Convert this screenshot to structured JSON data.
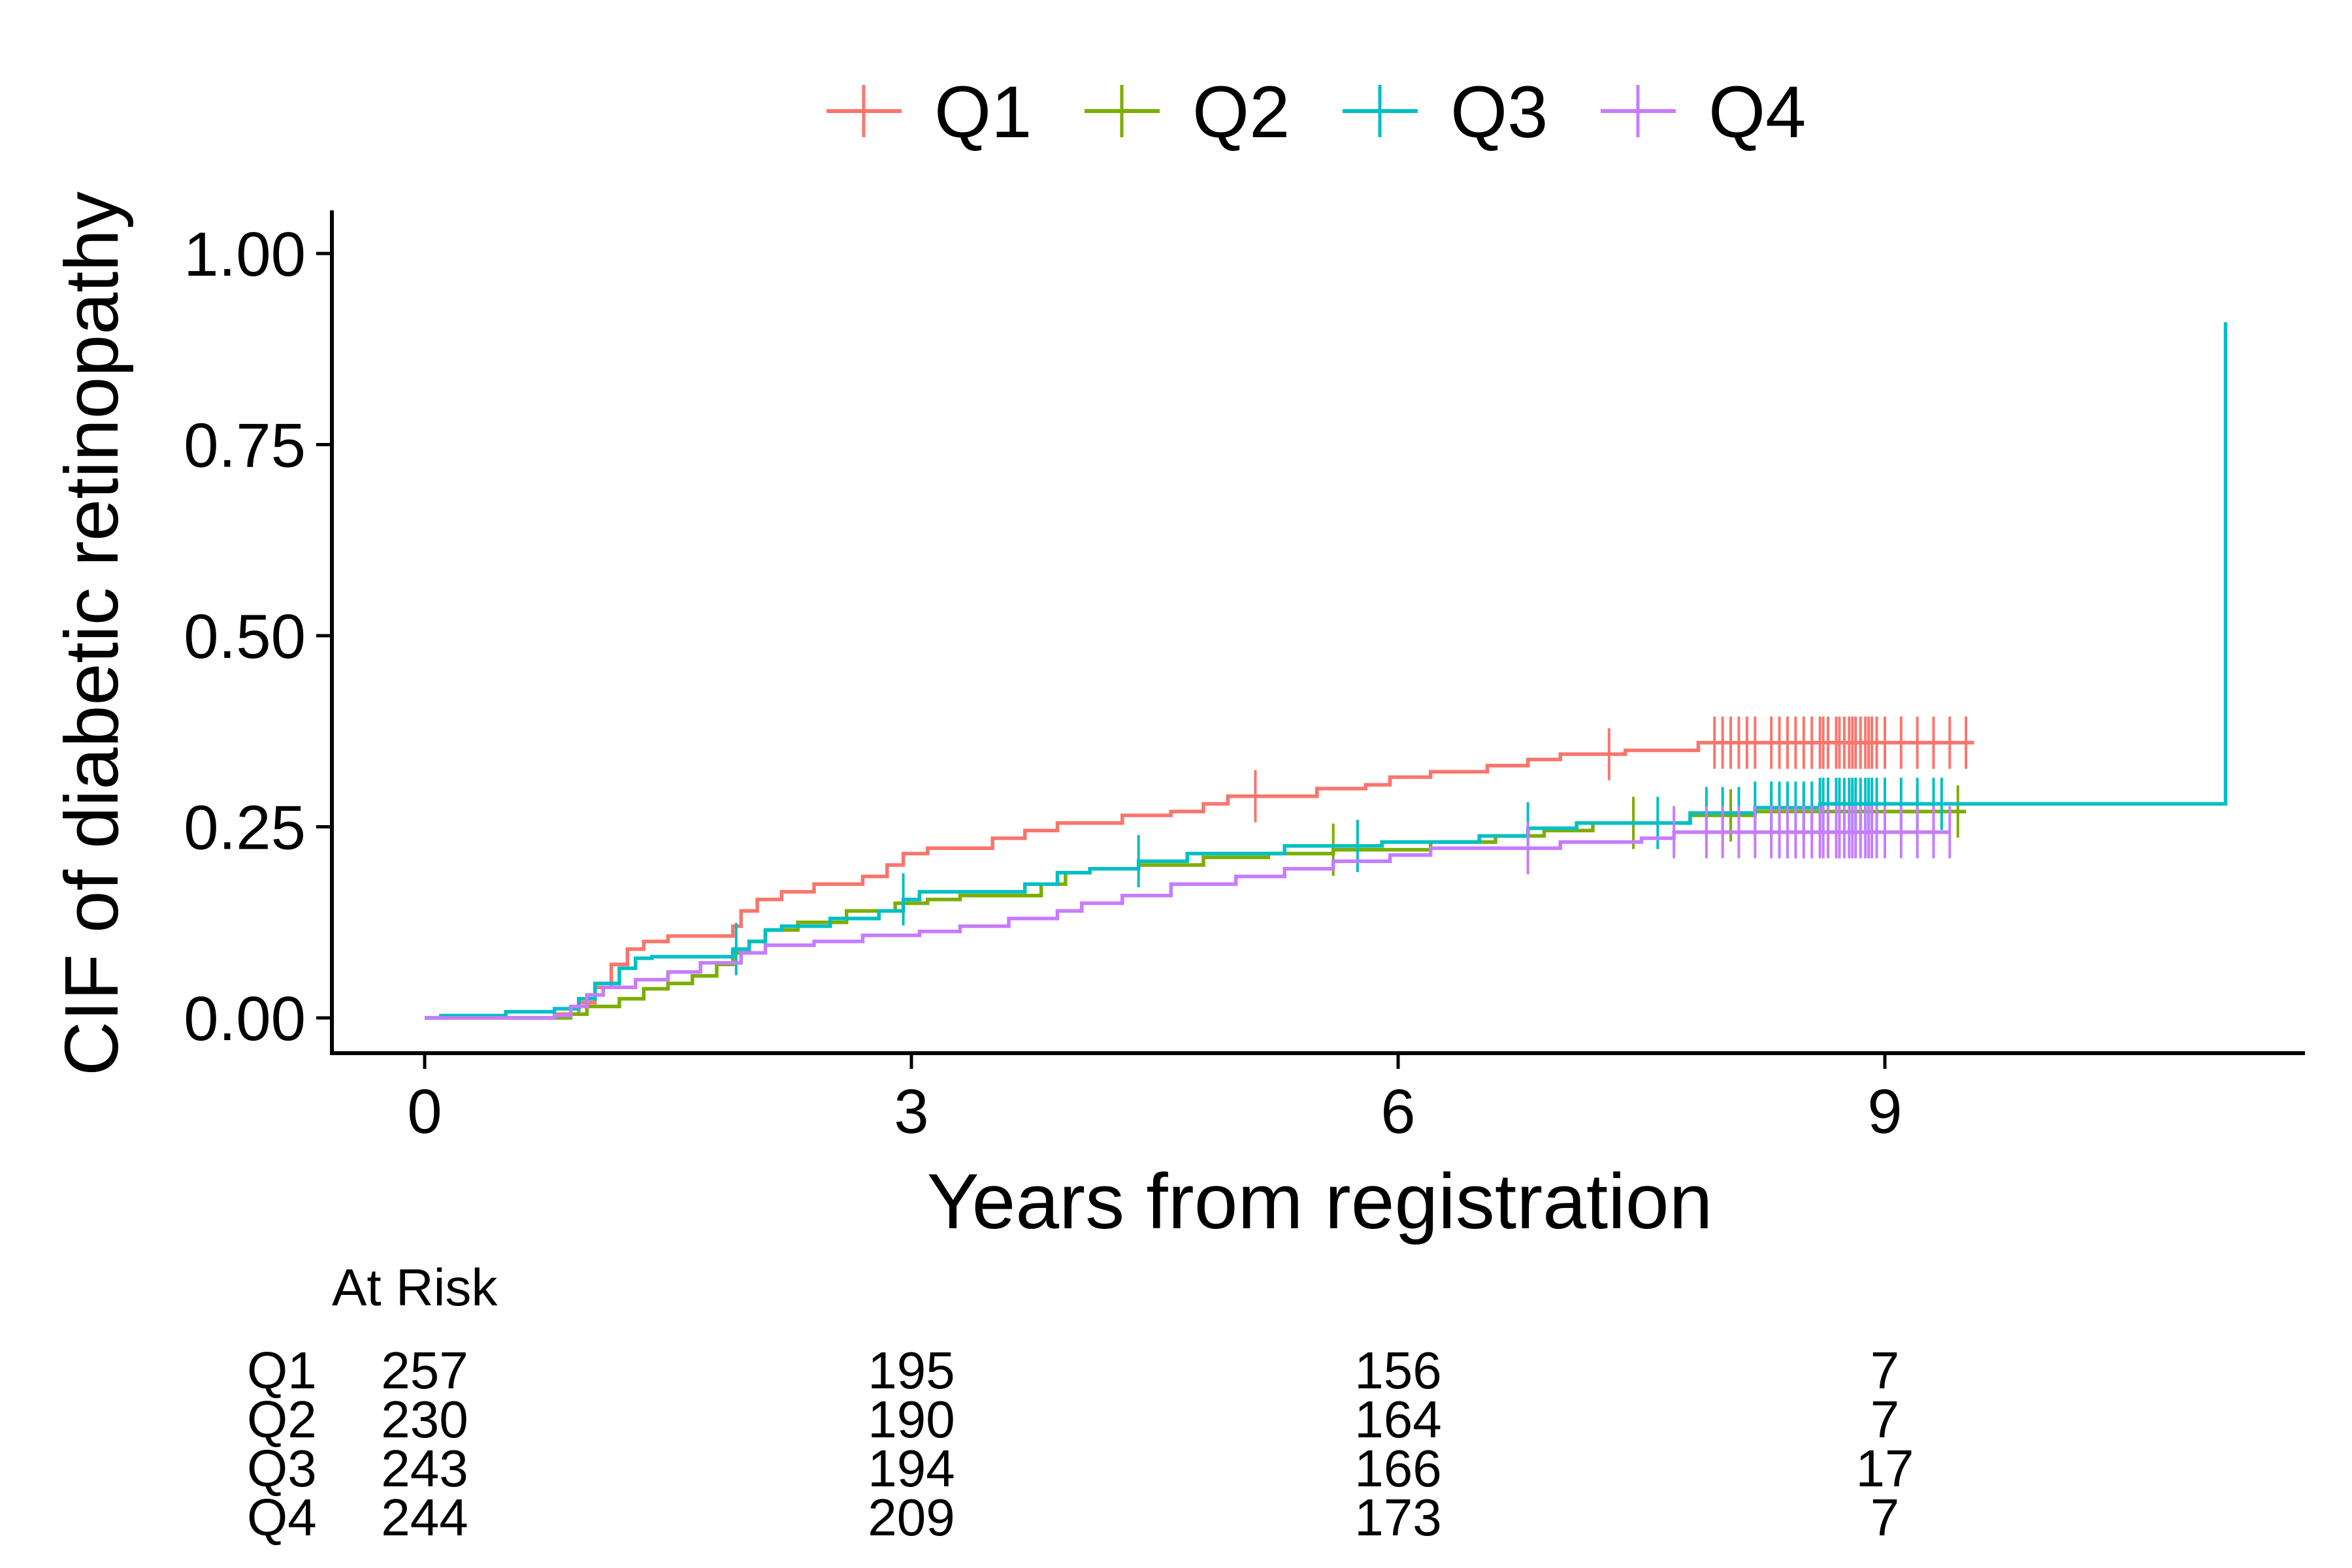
{
  "chart_data": {
    "type": "line",
    "subtype": "cumulative incidence step curves with censoring marks",
    "xlabel": "Years from registration",
    "ylabel": "CIF of diabetic retinopathy",
    "xlim": [
      -0.55,
      11.6
    ],
    "ylim": [
      -0.05,
      1.05
    ],
    "xticks": [
      0,
      3,
      6,
      9
    ],
    "xtick_labels": [
      "0",
      "3",
      "6",
      "9"
    ],
    "yticks": [
      0,
      0.25,
      0.5,
      0.75,
      1.0
    ],
    "ytick_labels": [
      "0.00",
      "0.25",
      "0.50",
      "0.75",
      "1.00"
    ],
    "grid": false,
    "legend_position": "top",
    "series": [
      {
        "name": "Q1",
        "color": "#F8766D",
        "points": [
          [
            0,
            0
          ],
          [
            0.8,
            0.005
          ],
          [
            0.95,
            0.02
          ],
          [
            1.05,
            0.04
          ],
          [
            1.15,
            0.07
          ],
          [
            1.25,
            0.09
          ],
          [
            1.35,
            0.1
          ],
          [
            1.5,
            0.107
          ],
          [
            1.9,
            0.12
          ],
          [
            1.95,
            0.14
          ],
          [
            2.05,
            0.155
          ],
          [
            2.2,
            0.165
          ],
          [
            2.4,
            0.175
          ],
          [
            2.7,
            0.185
          ],
          [
            2.85,
            0.2
          ],
          [
            2.95,
            0.215
          ],
          [
            3.1,
            0.222
          ],
          [
            3.5,
            0.235
          ],
          [
            3.7,
            0.245
          ],
          [
            3.9,
            0.255
          ],
          [
            4.3,
            0.265
          ],
          [
            4.6,
            0.27
          ],
          [
            4.8,
            0.28
          ],
          [
            4.95,
            0.29
          ],
          [
            5.5,
            0.3
          ],
          [
            5.8,
            0.305
          ],
          [
            5.95,
            0.315
          ],
          [
            6.2,
            0.322
          ],
          [
            6.55,
            0.33
          ],
          [
            6.8,
            0.338
          ],
          [
            7.0,
            0.345
          ],
          [
            7.4,
            0.35
          ],
          [
            7.85,
            0.36
          ],
          [
            9.55,
            0.36
          ]
        ],
        "censor": [
          5.12,
          7.3,
          7.95,
          8.0,
          8.05,
          8.1,
          8.15,
          8.2,
          8.3,
          8.35,
          8.4,
          8.45,
          8.5,
          8.55,
          8.6,
          8.62,
          8.65,
          8.7,
          8.72,
          8.75,
          8.78,
          8.8,
          8.82,
          8.85,
          8.88,
          8.9,
          8.92,
          8.95,
          9.0,
          9.1,
          9.2,
          9.3,
          9.4,
          9.5
        ]
      },
      {
        "name": "Q2",
        "color": "#7CAE00",
        "points": [
          [
            0,
            0
          ],
          [
            0.9,
            0.005
          ],
          [
            1.0,
            0.015
          ],
          [
            1.2,
            0.025
          ],
          [
            1.35,
            0.038
          ],
          [
            1.5,
            0.045
          ],
          [
            1.65,
            0.055
          ],
          [
            1.8,
            0.07
          ],
          [
            1.9,
            0.085
          ],
          [
            2.0,
            0.1
          ],
          [
            2.1,
            0.115
          ],
          [
            2.3,
            0.125
          ],
          [
            2.6,
            0.14
          ],
          [
            2.9,
            0.15
          ],
          [
            3.1,
            0.155
          ],
          [
            3.3,
            0.16
          ],
          [
            3.8,
            0.175
          ],
          [
            3.95,
            0.19
          ],
          [
            4.1,
            0.195
          ],
          [
            4.4,
            0.2
          ],
          [
            4.8,
            0.21
          ],
          [
            5.2,
            0.215
          ],
          [
            5.6,
            0.22
          ],
          [
            6.2,
            0.23
          ],
          [
            6.6,
            0.238
          ],
          [
            6.9,
            0.245
          ],
          [
            7.2,
            0.255
          ],
          [
            7.8,
            0.265
          ],
          [
            8.2,
            0.27
          ],
          [
            9.5,
            0.27
          ]
        ],
        "censor": [
          5.6,
          7.45,
          8.05,
          8.3,
          8.5,
          8.6,
          8.7,
          8.8,
          9.0,
          9.2,
          9.45
        ]
      },
      {
        "name": "Q3",
        "color": "#00BFC4",
        "points": [
          [
            0,
            0
          ],
          [
            0.1,
            0.003
          ],
          [
            0.5,
            0.008
          ],
          [
            0.8,
            0.012
          ],
          [
            0.95,
            0.025
          ],
          [
            1.05,
            0.045
          ],
          [
            1.2,
            0.065
          ],
          [
            1.3,
            0.078
          ],
          [
            1.4,
            0.08
          ],
          [
            1.9,
            0.09
          ],
          [
            2.0,
            0.1
          ],
          [
            2.1,
            0.115
          ],
          [
            2.2,
            0.12
          ],
          [
            2.5,
            0.13
          ],
          [
            2.8,
            0.14
          ],
          [
            2.95,
            0.155
          ],
          [
            3.05,
            0.165
          ],
          [
            3.7,
            0.175
          ],
          [
            3.9,
            0.19
          ],
          [
            4.1,
            0.195
          ],
          [
            4.4,
            0.205
          ],
          [
            4.7,
            0.215
          ],
          [
            5.3,
            0.225
          ],
          [
            5.9,
            0.23
          ],
          [
            6.5,
            0.238
          ],
          [
            6.8,
            0.248
          ],
          [
            7.1,
            0.255
          ],
          [
            7.8,
            0.268
          ],
          [
            8.2,
            0.275
          ],
          [
            8.6,
            0.28
          ],
          [
            11.1,
            0.28
          ],
          [
            11.1,
            0.91
          ]
        ],
        "censor": [
          1.92,
          2.95,
          4.4,
          5.75,
          6.8,
          7.6,
          7.9,
          8.0,
          8.1,
          8.2,
          8.3,
          8.35,
          8.4,
          8.45,
          8.5,
          8.55,
          8.6,
          8.62,
          8.65,
          8.7,
          8.72,
          8.75,
          8.78,
          8.8,
          8.82,
          8.85,
          8.88,
          8.9,
          8.92,
          8.95,
          9.0,
          9.1,
          9.2,
          9.3,
          9.35
        ]
      },
      {
        "name": "Q4",
        "color": "#C77CFF",
        "points": [
          [
            0,
            0
          ],
          [
            0.8,
            0.003
          ],
          [
            0.9,
            0.015
          ],
          [
            1.0,
            0.03
          ],
          [
            1.1,
            0.04
          ],
          [
            1.3,
            0.05
          ],
          [
            1.5,
            0.06
          ],
          [
            1.7,
            0.072
          ],
          [
            1.95,
            0.085
          ],
          [
            2.1,
            0.095
          ],
          [
            2.4,
            0.1
          ],
          [
            2.7,
            0.108
          ],
          [
            3.05,
            0.113
          ],
          [
            3.3,
            0.12
          ],
          [
            3.6,
            0.13
          ],
          [
            3.9,
            0.14
          ],
          [
            4.05,
            0.15
          ],
          [
            4.3,
            0.16
          ],
          [
            4.6,
            0.175
          ],
          [
            5.0,
            0.185
          ],
          [
            5.3,
            0.195
          ],
          [
            5.6,
            0.205
          ],
          [
            5.95,
            0.213
          ],
          [
            6.2,
            0.222
          ],
          [
            7.0,
            0.23
          ],
          [
            7.5,
            0.235
          ],
          [
            7.7,
            0.243
          ],
          [
            9.4,
            0.243
          ]
        ],
        "censor": [
          6.8,
          7.7,
          7.9,
          8.0,
          8.1,
          8.2,
          8.3,
          8.35,
          8.4,
          8.45,
          8.5,
          8.55,
          8.6,
          8.62,
          8.65,
          8.7,
          8.72,
          8.75,
          8.78,
          8.8,
          8.82,
          8.85,
          8.88,
          8.9,
          8.92,
          8.95,
          9.0,
          9.1,
          9.2,
          9.3,
          9.4
        ]
      }
    ],
    "risk_table": {
      "title": "At Risk",
      "rows": [
        {
          "label": "Q1",
          "values": [
            "257",
            "195",
            "156",
            "7"
          ]
        },
        {
          "label": "Q2",
          "values": [
            "230",
            "190",
            "164",
            "7"
          ]
        },
        {
          "label": "Q3",
          "values": [
            "243",
            "194",
            "166",
            "17"
          ]
        },
        {
          "label": "Q4",
          "values": [
            "244",
            "209",
            "173",
            "7"
          ]
        }
      ]
    }
  }
}
